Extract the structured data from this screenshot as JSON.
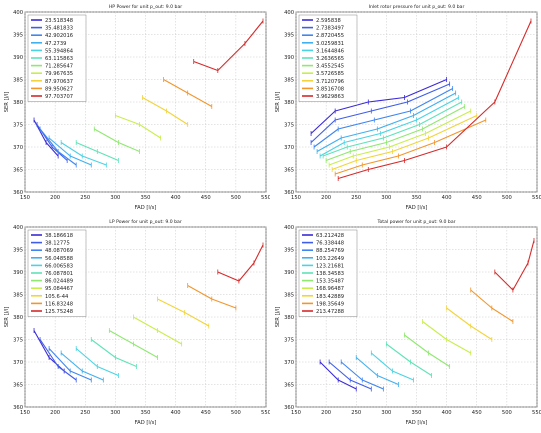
{
  "chart_data": [
    {
      "type": "line",
      "title": "HP Power for unit p_out:   9.0   bar",
      "xlabel": "FAD [l/s]",
      "ylabel": "SER [J/l]",
      "xlim": [
        150,
        550
      ],
      "ylim": [
        360,
        400
      ],
      "xticks": [
        150,
        200,
        250,
        300,
        350,
        400,
        450,
        500,
        550
      ],
      "yticks": [
        360,
        365,
        370,
        375,
        380,
        385,
        390,
        395,
        400
      ],
      "grid": true,
      "legend_position": "top-left",
      "series": [
        {
          "name": "23.518348",
          "color": "#3a2bd6",
          "x": [
            165,
            185,
            205
          ],
          "y": [
            376,
            371,
            368
          ]
        },
        {
          "name": "35.481833",
          "color": "#3f5de8",
          "x": [
            170,
            195,
            220
          ],
          "y": [
            375,
            370,
            367
          ]
        },
        {
          "name": "42.902016",
          "color": "#3f86f0",
          "x": [
            175,
            205,
            235
          ],
          "y": [
            374,
            369,
            366
          ]
        },
        {
          "name": "47.2739",
          "color": "#3fb0f0",
          "x": [
            190,
            225,
            260
          ],
          "y": [
            372,
            368,
            366
          ]
        },
        {
          "name": "55.394864",
          "color": "#4ad3e3",
          "x": [
            210,
            245,
            285
          ],
          "y": [
            371,
            368,
            366
          ]
        },
        {
          "name": "63.115863",
          "color": "#5fe3b8",
          "x": [
            235,
            270,
            305
          ],
          "y": [
            371,
            369,
            367
          ]
        },
        {
          "name": "71.285647",
          "color": "#8fe870",
          "x": [
            265,
            305,
            340
          ],
          "y": [
            374,
            371,
            369
          ]
        },
        {
          "name": "79.967635",
          "color": "#c8ee4c",
          "x": [
            300,
            340,
            375
          ],
          "y": [
            377,
            375,
            372
          ]
        },
        {
          "name": "87.970637",
          "color": "#f2d43a",
          "x": [
            345,
            385,
            420
          ],
          "y": [
            381,
            378,
            375
          ]
        },
        {
          "name": "89.950627",
          "color": "#f2962c",
          "x": [
            380,
            420,
            460
          ],
          "y": [
            385,
            382,
            379
          ]
        },
        {
          "name": "97.703707",
          "color": "#d62a2a",
          "x": [
            430,
            470,
            515,
            545
          ],
          "y": [
            389,
            387,
            393,
            398
          ]
        }
      ]
    },
    {
      "type": "line",
      "title": "Inlet rotor pressure for unit p_out:   9.0   bar",
      "xlabel": "FAD [l/s]",
      "ylabel": "SER [J/l]",
      "xlim": [
        150,
        550
      ],
      "ylim": [
        360,
        400
      ],
      "xticks": [
        150,
        200,
        250,
        300,
        350,
        400,
        450,
        500,
        550
      ],
      "yticks": [
        360,
        365,
        370,
        375,
        380,
        385,
        390,
        395,
        400
      ],
      "grid": true,
      "legend_position": "top-left",
      "series": [
        {
          "name": "2.595838",
          "color": "#3a2bd6",
          "x": [
            175,
            215,
            270,
            330,
            400
          ],
          "y": [
            373,
            378,
            380,
            381,
            385
          ]
        },
        {
          "name": "2.7383497",
          "color": "#3f5de8",
          "x": [
            175,
            215,
            275,
            335,
            405
          ],
          "y": [
            371,
            376,
            378,
            380,
            384
          ]
        },
        {
          "name": "2.8720455",
          "color": "#3f86f0",
          "x": [
            180,
            220,
            280,
            340,
            410
          ],
          "y": [
            370,
            374,
            376,
            378,
            383
          ]
        },
        {
          "name": "3.0259831",
          "color": "#3fb0f0",
          "x": [
            185,
            225,
            285,
            345,
            415
          ],
          "y": [
            369,
            372,
            374,
            377,
            382
          ]
        },
        {
          "name": "3.1644846",
          "color": "#4ad3e3",
          "x": [
            190,
            230,
            290,
            350,
            420
          ],
          "y": [
            368,
            371,
            373,
            376,
            381
          ]
        },
        {
          "name": "3.2636565",
          "color": "#5fe3b8",
          "x": [
            195,
            235,
            295,
            355,
            425
          ],
          "y": [
            368,
            370,
            372,
            375,
            380
          ]
        },
        {
          "name": "3.4552545",
          "color": "#8fe870",
          "x": [
            200,
            240,
            300,
            360,
            430
          ],
          "y": [
            367,
            369,
            371,
            374,
            379
          ]
        },
        {
          "name": "3.5726585",
          "color": "#c8ee4c",
          "x": [
            205,
            245,
            305,
            365,
            440
          ],
          "y": [
            366,
            368,
            370,
            373,
            378
          ]
        },
        {
          "name": "3.7120796",
          "color": "#f2d43a",
          "x": [
            210,
            250,
            310,
            370,
            450
          ],
          "y": [
            365,
            367,
            369,
            372,
            377
          ]
        },
        {
          "name": "3.8516708",
          "color": "#f2962c",
          "x": [
            215,
            260,
            320,
            380,
            465
          ],
          "y": [
            364,
            366,
            368,
            371,
            376
          ]
        },
        {
          "name": "3.9629863",
          "color": "#d62a2a",
          "x": [
            220,
            270,
            330,
            400,
            480,
            540
          ],
          "y": [
            363,
            365,
            367,
            370,
            380,
            398
          ]
        }
      ]
    },
    {
      "type": "line",
      "title": "LP Power for unit p_out:   9.0   bar",
      "xlabel": "FAD [l/s]",
      "ylabel": "SER [J/l]",
      "xlim": [
        150,
        550
      ],
      "ylim": [
        360,
        400
      ],
      "xticks": [
        150,
        200,
        250,
        300,
        350,
        400,
        450,
        500,
        550
      ],
      "yticks": [
        360,
        365,
        370,
        375,
        380,
        385,
        390,
        395,
        400
      ],
      "grid": true,
      "legend_position": "top-left",
      "series": [
        {
          "name": "38.186618",
          "color": "#3a2bd6",
          "x": [
            165,
            190,
            215
          ],
          "y": [
            377,
            371,
            368
          ]
        },
        {
          "name": "38.12775",
          "color": "#3f5de8",
          "x": [
            175,
            205,
            235
          ],
          "y": [
            375,
            369,
            366
          ]
        },
        {
          "name": "48.087069",
          "color": "#3f86f0",
          "x": [
            190,
            225,
            260
          ],
          "y": [
            373,
            368,
            366
          ]
        },
        {
          "name": "56.048588",
          "color": "#3fb0f0",
          "x": [
            210,
            245,
            280
          ],
          "y": [
            372,
            368,
            366
          ]
        },
        {
          "name": "66.006583",
          "color": "#4ad3e3",
          "x": [
            235,
            270,
            305
          ],
          "y": [
            373,
            369,
            367
          ]
        },
        {
          "name": "76.087801",
          "color": "#5fe3b8",
          "x": [
            260,
            300,
            335
          ],
          "y": [
            375,
            371,
            369
          ]
        },
        {
          "name": "86.024489",
          "color": "#8fe870",
          "x": [
            290,
            330,
            370
          ],
          "y": [
            377,
            374,
            371
          ]
        },
        {
          "name": "95.084467",
          "color": "#c8ee4c",
          "x": [
            330,
            370,
            410
          ],
          "y": [
            380,
            377,
            374
          ]
        },
        {
          "name": "105.6-44",
          "color": "#f2d43a",
          "x": [
            370,
            415,
            455
          ],
          "y": [
            384,
            381,
            378
          ]
        },
        {
          "name": "116.83248",
          "color": "#f2962c",
          "x": [
            420,
            460,
            500
          ],
          "y": [
            387,
            384,
            382
          ]
        },
        {
          "name": "125.75248",
          "color": "#d62a2a",
          "x": [
            470,
            505,
            530,
            545
          ],
          "y": [
            390,
            388,
            392,
            396
          ]
        }
      ]
    },
    {
      "type": "line",
      "title": "Total power for unit p_out:   9.0   bar",
      "xlabel": "FAD [l/s]",
      "ylabel": "SER [J/l]",
      "xlim": [
        150,
        550
      ],
      "ylim": [
        360,
        400
      ],
      "xticks": [
        150,
        200,
        250,
        300,
        350,
        400,
        450,
        500,
        550
      ],
      "yticks": [
        360,
        365,
        370,
        375,
        380,
        385,
        390,
        395,
        400
      ],
      "grid": true,
      "legend_position": "top-left",
      "series": [
        {
          "name": "63.212428",
          "color": "#3a2bd6",
          "x": [
            190,
            220,
            250
          ],
          "y": [
            370,
            366,
            364
          ]
        },
        {
          "name": "76.338448",
          "color": "#3f5de8",
          "x": [
            205,
            240,
            275
          ],
          "y": [
            370,
            366,
            364
          ]
        },
        {
          "name": "88.254769",
          "color": "#3f86f0",
          "x": [
            225,
            260,
            295
          ],
          "y": [
            370,
            366,
            364
          ]
        },
        {
          "name": "103.22649",
          "color": "#3fb0f0",
          "x": [
            250,
            285,
            320
          ],
          "y": [
            371,
            367,
            365
          ]
        },
        {
          "name": "123.21681",
          "color": "#4ad3e3",
          "x": [
            275,
            310,
            345
          ],
          "y": [
            372,
            368,
            366
          ]
        },
        {
          "name": "138.34583",
          "color": "#5fe3b8",
          "x": [
            300,
            340,
            375
          ],
          "y": [
            374,
            370,
            367
          ]
        },
        {
          "name": "153.35487",
          "color": "#8fe870",
          "x": [
            330,
            370,
            405
          ],
          "y": [
            376,
            372,
            369
          ]
        },
        {
          "name": "168.96487",
          "color": "#c8ee4c",
          "x": [
            360,
            400,
            440
          ],
          "y": [
            379,
            375,
            372
          ]
        },
        {
          "name": "183.42889",
          "color": "#f2d43a",
          "x": [
            400,
            440,
            475
          ],
          "y": [
            382,
            378,
            375
          ]
        },
        {
          "name": "198.35649",
          "color": "#f2962c",
          "x": [
            440,
            475,
            510
          ],
          "y": [
            386,
            382,
            379
          ]
        },
        {
          "name": "213.47288",
          "color": "#d62a2a",
          "x": [
            480,
            510,
            535,
            545
          ],
          "y": [
            390,
            386,
            392,
            397
          ]
        }
      ]
    }
  ]
}
